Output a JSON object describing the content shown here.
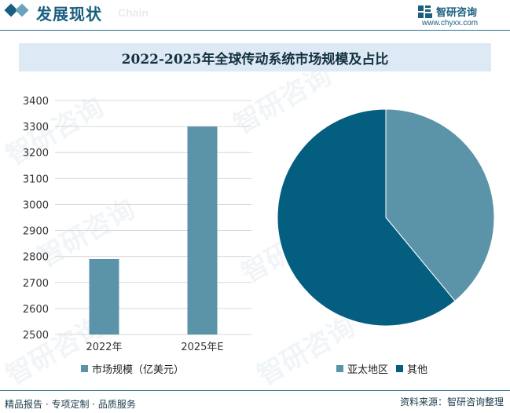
{
  "header": {
    "title": "发展现状",
    "subtitle": "Chain",
    "brand_name": "智研咨询",
    "brand_url": "www.chyxx.com"
  },
  "colors": {
    "brand": "#1a5e80",
    "bar": "#5b93a8",
    "pie_asia": "#5b93a8",
    "pie_other": "#045e80",
    "title_band": "#dde9f4"
  },
  "title": "2022-2025年全球传动系统市场规模及占比",
  "watermark": "智研咨询",
  "chart_data": [
    {
      "type": "bar",
      "categories": [
        "2022年",
        "2025年E"
      ],
      "series": [
        {
          "name": "市场规模（亿美元）",
          "values": [
            2790,
            3300
          ]
        }
      ],
      "ylim": [
        2500,
        3400
      ],
      "yticks": [
        3400,
        3300,
        3200,
        3100,
        3000,
        2900,
        2800,
        2700,
        2600,
        2500
      ],
      "grid": true,
      "legend": "bottom"
    },
    {
      "type": "pie",
      "labels": [
        "亚太地区",
        "其他"
      ],
      "values": [
        39,
        61
      ],
      "legend": "bottom"
    }
  ],
  "footer": {
    "left": "精品报告 · 专项定制 · 品质服务",
    "right": "资料来源：智研咨询整理"
  }
}
